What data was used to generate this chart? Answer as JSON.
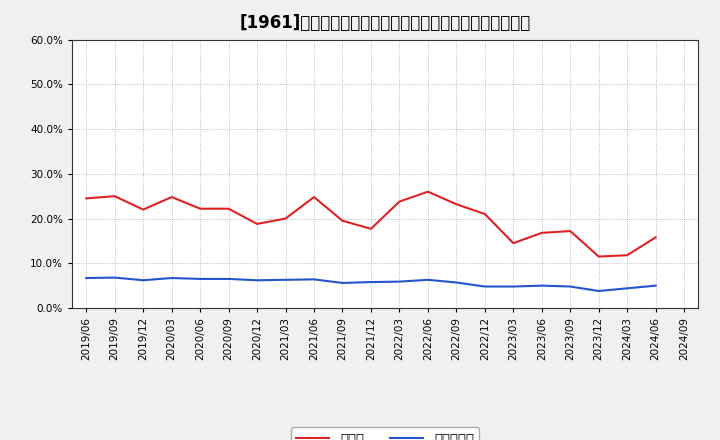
{
  "title": "[1961]　現預金、有利子負債の総資産に対する比率の推移",
  "x_labels": [
    "2019/06",
    "2019/09",
    "2019/12",
    "2020/03",
    "2020/06",
    "2020/09",
    "2020/12",
    "2021/03",
    "2021/06",
    "2021/09",
    "2021/12",
    "2022/03",
    "2022/06",
    "2022/09",
    "2022/12",
    "2023/03",
    "2023/06",
    "2023/09",
    "2023/12",
    "2024/03",
    "2024/06",
    "2024/09"
  ],
  "cash": [
    0.245,
    0.25,
    0.22,
    0.248,
    0.222,
    0.222,
    0.188,
    0.2,
    0.248,
    0.195,
    0.177,
    0.238,
    0.26,
    0.232,
    0.21,
    0.145,
    0.168,
    0.172,
    0.115,
    0.118,
    0.158,
    null
  ],
  "debt": [
    0.067,
    0.068,
    0.062,
    0.067,
    0.065,
    0.065,
    0.062,
    0.063,
    0.064,
    0.056,
    0.058,
    0.059,
    0.063,
    0.057,
    0.048,
    0.048,
    0.05,
    0.048,
    0.038,
    0.044,
    0.05,
    null
  ],
  "cash_color": "#dd2222",
  "debt_color": "#2255cc",
  "ylim": [
    0.0,
    0.6
  ],
  "yticks": [
    0.0,
    0.1,
    0.2,
    0.3,
    0.4,
    0.5,
    0.6
  ],
  "legend_cash": "現預金",
  "legend_debt": "有利子負債",
  "background_color": "#f0f0f0",
  "plot_bg_color": "#ffffff",
  "grid_color": "#aaaaaa",
  "title_fontsize": 12,
  "label_fontsize": 7.5,
  "legend_fontsize": 9.5
}
